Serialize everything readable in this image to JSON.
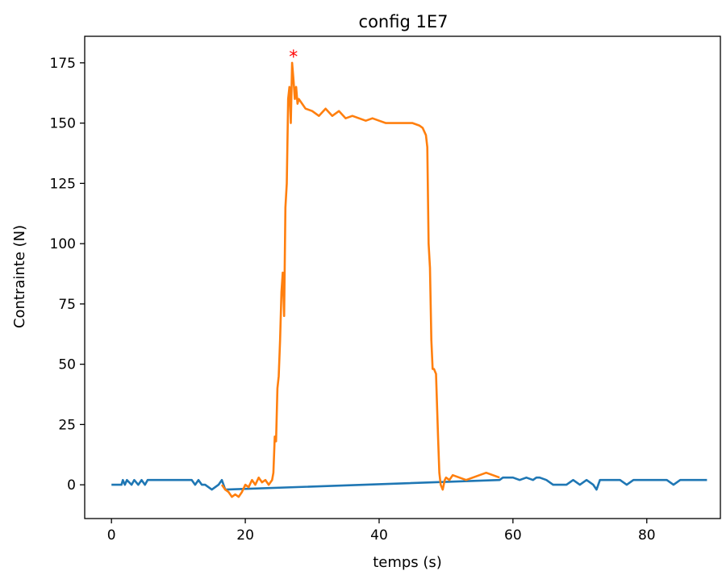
{
  "chart_data": {
    "type": "line",
    "title": "config 1E7",
    "xlabel": "temps (s)",
    "ylabel": "Contrainte (N)",
    "xlim": [
      -4,
      91
    ],
    "ylim": [
      -14,
      186
    ],
    "x_ticks": [
      0,
      20,
      40,
      60,
      80
    ],
    "x_tick_labels": [
      "0",
      "20",
      "40",
      "60",
      "80"
    ],
    "y_ticks": [
      0,
      25,
      50,
      75,
      100,
      125,
      150,
      175
    ],
    "y_tick_labels": [
      "0",
      "25",
      "50",
      "75",
      "100",
      "125",
      "150",
      "175"
    ],
    "grid": false,
    "series": [
      {
        "color": "#1f77b4",
        "x": [
          0,
          1.5,
          1.7,
          2,
          2.3,
          3,
          3.4,
          4,
          4.5,
          5,
          5.4,
          6,
          7,
          8,
          9,
          10,
          11,
          12,
          12.5,
          13,
          13.5,
          14,
          15,
          16,
          16.5,
          17,
          58,
          58.5,
          60,
          61,
          62,
          63,
          63.5,
          64,
          65,
          66,
          67,
          68,
          69,
          70,
          71,
          72,
          72.5,
          73,
          74,
          75,
          76,
          77,
          78,
          79,
          80,
          81,
          82,
          83,
          84,
          85,
          86,
          87,
          88,
          89
        ],
        "y": [
          0,
          0,
          2,
          0,
          2,
          0,
          2,
          0,
          2,
          0,
          2,
          2,
          2,
          2,
          2,
          2,
          2,
          2,
          0,
          2,
          0,
          0,
          -2,
          0,
          2,
          -2,
          2,
          3,
          3,
          2,
          3,
          2,
          3,
          3,
          2,
          0,
          0,
          0,
          2,
          0,
          2,
          0,
          -2,
          2,
          2,
          2,
          2,
          0,
          2,
          2,
          2,
          2,
          2,
          2,
          0,
          2,
          2,
          2,
          2,
          2
        ]
      },
      {
        "color": "#ff7f0e",
        "x": [
          16.5,
          17,
          17.5,
          18,
          18.5,
          19,
          19.5,
          20,
          20.5,
          21,
          21.5,
          22,
          22.5,
          23,
          23.5,
          24,
          24.2,
          24.4,
          24.6,
          24.8,
          25,
          25.2,
          25.4,
          25.6,
          25.8,
          26,
          26.2,
          26.4,
          26.6,
          26.8,
          27,
          27.2,
          27.4,
          27.6,
          27.8,
          28,
          28.5,
          29,
          30,
          31,
          32,
          33,
          34,
          35,
          36,
          37,
          38,
          39,
          40,
          41,
          42,
          43,
          44,
          45,
          46,
          46.5,
          47,
          47.2,
          47.4,
          47.6,
          47.8,
          48,
          48.2,
          48.5,
          48.8,
          49,
          49.2,
          49.5,
          49.8,
          50,
          50.5,
          51,
          52,
          53,
          54,
          55,
          56,
          57,
          58
        ],
        "y": [
          0,
          -2,
          -3,
          -5,
          -4,
          -5,
          -3,
          0,
          -1,
          2,
          0,
          3,
          1,
          2,
          0,
          2,
          5,
          20,
          18,
          40,
          45,
          60,
          80,
          88,
          70,
          115,
          125,
          160,
          165,
          150,
          175,
          168,
          160,
          165,
          158,
          160,
          158,
          156,
          155,
          153,
          156,
          153,
          155,
          152,
          153,
          152,
          151,
          152,
          151,
          150,
          150,
          150,
          150,
          150,
          149,
          148,
          145,
          140,
          100,
          90,
          60,
          48,
          48,
          46,
          20,
          5,
          0,
          -2,
          2,
          3,
          2,
          4,
          3,
          2,
          3,
          4,
          5,
          4,
          3
        ]
      }
    ],
    "markers": [
      {
        "x": 27.2,
        "y": 178,
        "symbol": "*",
        "color": "#ff0000"
      }
    ]
  }
}
